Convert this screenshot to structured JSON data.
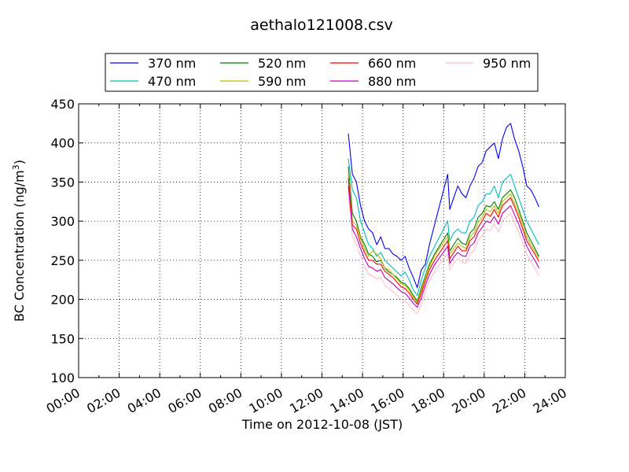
{
  "chart_data": {
    "type": "line",
    "title": "aethalo121008.csv",
    "xlabel": "Time on 2012-10-08 (JST)",
    "ylabel": "BC Concentration (ng/m",
    "ylabel_sup": "3",
    "ylabel_end": ")",
    "xlim": [
      0,
      24
    ],
    "ylim": [
      100,
      450
    ],
    "grid": true,
    "legend_position": "top",
    "x_ticks": [
      0,
      2,
      4,
      6,
      8,
      10,
      12,
      14,
      16,
      18,
      20,
      22,
      24
    ],
    "x_tick_labels": [
      "00:00",
      "02:00",
      "04:00",
      "06:00",
      "08:00",
      "10:00",
      "12:00",
      "14:00",
      "16:00",
      "18:00",
      "20:00",
      "22:00",
      "24:00"
    ],
    "y_ticks": [
      100,
      150,
      200,
      250,
      300,
      350,
      400,
      450
    ],
    "y_tick_labels": [
      "100",
      "150",
      "200",
      "250",
      "300",
      "350",
      "400",
      "450"
    ],
    "x": [
      13.3,
      13.5,
      13.7,
      13.9,
      14.1,
      14.3,
      14.5,
      14.7,
      14.9,
      15.1,
      15.3,
      15.5,
      15.7,
      15.9,
      16.1,
      16.3,
      16.5,
      16.7,
      16.9,
      17.1,
      17.3,
      17.6,
      18.2,
      18.3,
      18.5,
      18.7,
      18.9,
      19.1,
      19.3,
      19.5,
      19.7,
      19.9,
      20.1,
      20.3,
      20.5,
      20.7,
      20.9,
      21.1,
      21.3,
      21.5,
      21.7,
      21.9,
      22.1,
      22.3,
      22.5,
      22.7
    ],
    "series": [
      {
        "name": "370 nm",
        "color": "#0000ff",
        "values": [
          412,
          360,
          350,
          320,
          300,
          290,
          285,
          270,
          280,
          265,
          265,
          258,
          255,
          250,
          255,
          240,
          228,
          215,
          238,
          245,
          270,
          300,
          360,
          315,
          330,
          345,
          335,
          330,
          345,
          355,
          370,
          375,
          390,
          395,
          400,
          380,
          405,
          420,
          425,
          405,
          390,
          370,
          345,
          340,
          330,
          318
        ]
      },
      {
        "name": "470 nm",
        "color": "#00bfbf",
        "values": [
          380,
          340,
          330,
          300,
          285,
          270,
          265,
          255,
          260,
          250,
          245,
          240,
          235,
          230,
          235,
          225,
          212,
          205,
          225,
          240,
          255,
          270,
          300,
          275,
          285,
          290,
          285,
          285,
          300,
          305,
          320,
          325,
          335,
          335,
          345,
          330,
          350,
          355,
          360,
          345,
          330,
          315,
          300,
          290,
          280,
          270
        ]
      },
      {
        "name": "520 nm",
        "color": "#008000",
        "values": [
          370,
          310,
          300,
          280,
          270,
          258,
          255,
          248,
          250,
          240,
          235,
          232,
          228,
          222,
          220,
          214,
          205,
          198,
          215,
          230,
          245,
          260,
          285,
          262,
          270,
          278,
          272,
          270,
          285,
          290,
          305,
          310,
          320,
          318,
          325,
          315,
          330,
          335,
          340,
          330,
          315,
          300,
          285,
          275,
          265,
          255
        ]
      },
      {
        "name": "590 nm",
        "color": "#bfbf00",
        "values": [
          360,
          300,
          295,
          278,
          265,
          255,
          262,
          258,
          252,
          240,
          238,
          232,
          226,
          220,
          218,
          212,
          203,
          196,
          212,
          228,
          242,
          258,
          280,
          258,
          265,
          272,
          268,
          265,
          280,
          285,
          298,
          305,
          315,
          312,
          320,
          310,
          325,
          330,
          335,
          322,
          310,
          295,
          280,
          270,
          262,
          252
        ]
      },
      {
        "name": "660 nm",
        "color": "#ff0000",
        "values": [
          355,
          295,
          290,
          272,
          260,
          250,
          250,
          245,
          245,
          236,
          232,
          228,
          222,
          216,
          214,
          208,
          200,
          194,
          208,
          224,
          238,
          252,
          275,
          252,
          260,
          268,
          262,
          262,
          275,
          280,
          292,
          300,
          310,
          306,
          315,
          305,
          320,
          325,
          330,
          318,
          305,
          290,
          275,
          266,
          258,
          248
        ]
      },
      {
        "name": "880 nm",
        "color": "#bf00bf",
        "values": [
          345,
          290,
          280,
          265,
          252,
          242,
          240,
          236,
          238,
          228,
          224,
          220,
          215,
          210,
          208,
          202,
          195,
          190,
          202,
          218,
          232,
          246,
          268,
          246,
          254,
          260,
          256,
          255,
          268,
          272,
          285,
          292,
          300,
          298,
          306,
          296,
          310,
          315,
          320,
          308,
          296,
          282,
          268,
          258,
          250,
          240
        ]
      },
      {
        "name": "950 nm",
        "color": "#ffc0cb",
        "values": [
          335,
          280,
          270,
          255,
          242,
          232,
          230,
          226,
          228,
          218,
          214,
          210,
          205,
          200,
          198,
          192,
          186,
          182,
          194,
          210,
          224,
          238,
          258,
          238,
          246,
          252,
          248,
          246,
          258,
          262,
          275,
          282,
          290,
          288,
          296,
          286,
          300,
          305,
          310,
          298,
          286,
          272,
          258,
          248,
          240,
          230
        ]
      }
    ]
  }
}
